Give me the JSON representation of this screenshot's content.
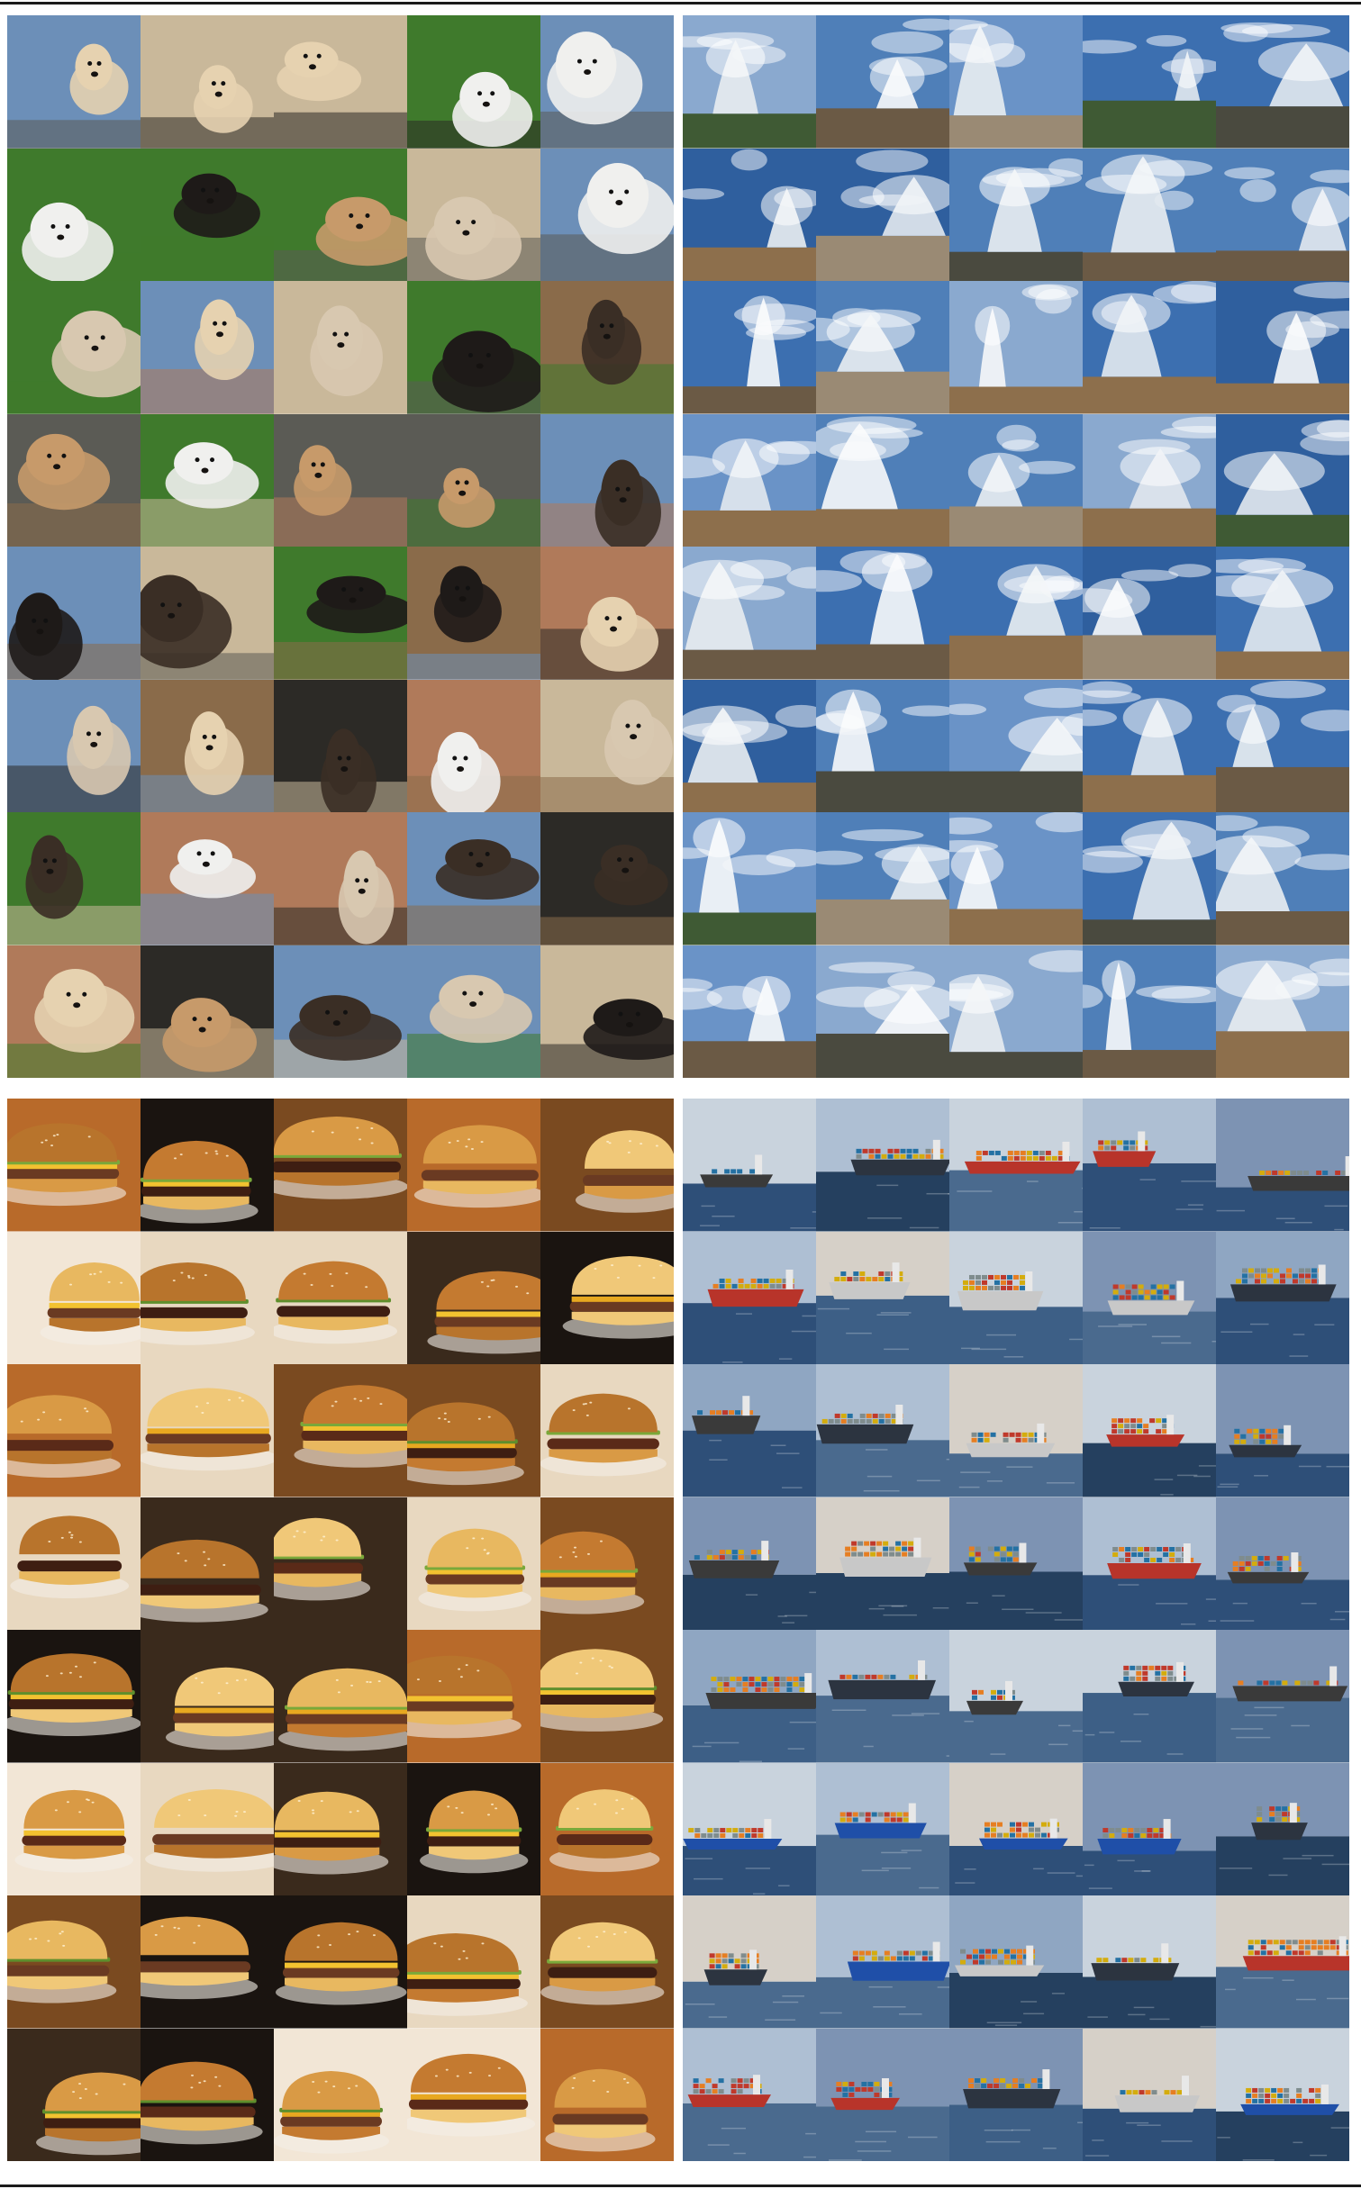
{
  "figure": {
    "panels": [
      {
        "id": "top-left",
        "subject": "dog",
        "rows": 8,
        "cols": 5,
        "palette": {
          "bg": [
            "#3f7a2c",
            "#8a6b4a",
            "#c9b89a",
            "#5b5b55",
            "#6c8fb8",
            "#b07a5a",
            "#2c2a26"
          ],
          "fg": [
            "#e6d2b0",
            "#3a2e25",
            "#f0f0ee",
            "#c79a6a",
            "#1e1a18",
            "#d8c8b0"
          ]
        }
      },
      {
        "id": "top-right",
        "subject": "geyser",
        "rows": 8,
        "cols": 5,
        "palette": {
          "bg": [
            "#4f7fb8",
            "#6a93c7",
            "#2f5f9e",
            "#8aa9cf",
            "#3c6fb0"
          ],
          "ground": [
            "#6b5a45",
            "#4a4a3f",
            "#8d6f4c",
            "#3f5a34",
            "#9a8a74"
          ],
          "fg": [
            "#f4f6f8",
            "#e6ebf0",
            "#dfe6ee"
          ]
        }
      },
      {
        "id": "bottom-left",
        "subject": "cheeseburger",
        "rows": 8,
        "cols": 5,
        "palette": {
          "bg": [
            "#1a1410",
            "#7a4a20",
            "#e8d8c0",
            "#3a2a1c",
            "#b86a2a",
            "#f2e6d6"
          ],
          "bun": [
            "#d99a45",
            "#e8b860",
            "#c47a30",
            "#f0c878",
            "#b8742c"
          ],
          "patty": [
            "#5a2a18",
            "#3e1e12",
            "#6a3a22"
          ],
          "cheese": [
            "#f2c230",
            "#e8a820"
          ],
          "lettuce": [
            "#7aa83a",
            "#5f8f2c"
          ]
        }
      },
      {
        "id": "bottom-right",
        "subject": "container-ship",
        "rows": 8,
        "cols": 5,
        "palette": {
          "sky": [
            "#aebfd3",
            "#c9d3dd",
            "#8fa6c2",
            "#d6d0c8",
            "#7d93b3"
          ],
          "water": [
            "#2e4f78",
            "#3d5f86",
            "#4a6a8e",
            "#25405f"
          ],
          "hull": [
            "#b8342a",
            "#2c3440",
            "#1f4fa8",
            "#c8c8c8",
            "#3a3a3a"
          ],
          "cargo": [
            "#c0392b",
            "#2471a3",
            "#d4ac0d",
            "#7f8c8d",
            "#e67e22"
          ]
        }
      }
    ]
  }
}
